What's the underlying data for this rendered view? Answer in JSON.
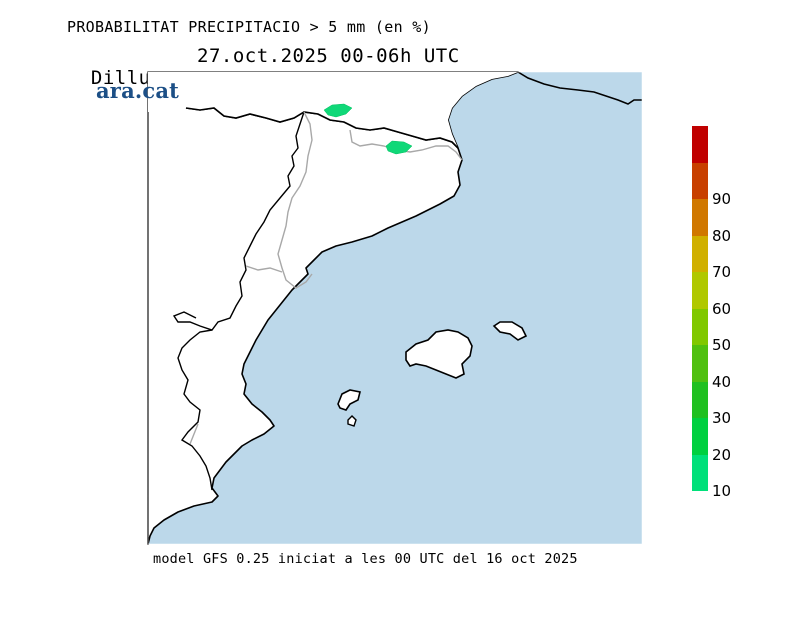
{
  "header": {
    "title": "PROBABILITAT PRECIPITACIO > 5 mm (en %)",
    "day": "Dilluns",
    "date_range": "27.oct.2025 00-06h UTC"
  },
  "logo": {
    "text": "ara.cat",
    "color": "#1c4f86"
  },
  "map": {
    "sea_color": "#bcd8ea",
    "land_color": "#ffffff",
    "coast_color": "#000000",
    "border_color": "#a0a0a0",
    "precip_color": "#10d878"
  },
  "legend": {
    "levels": [
      {
        "label": "10",
        "color": "#00e07a"
      },
      {
        "label": "20",
        "color": "#00d040"
      },
      {
        "label": "30",
        "color": "#20c020"
      },
      {
        "label": "40",
        "color": "#50c010"
      },
      {
        "label": "50",
        "color": "#80c800"
      },
      {
        "label": "60",
        "color": "#b0c800"
      },
      {
        "label": "70",
        "color": "#d0b000"
      },
      {
        "label": "80",
        "color": "#d07800"
      },
      {
        "label": "90",
        "color": "#c84000"
      },
      {
        "label": "",
        "color": "#c00000"
      }
    ]
  },
  "footer": {
    "text": "model GFS 0.25 iniciat a les 00 UTC del 16 oct 2025"
  }
}
